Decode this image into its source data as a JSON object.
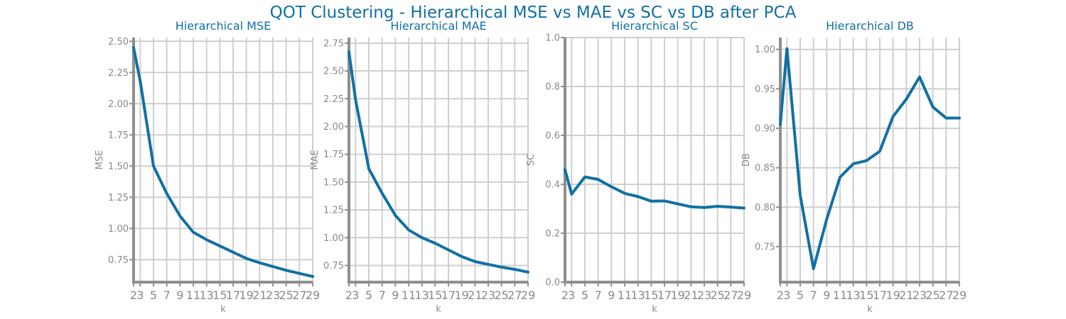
{
  "suptitle": "QOT Clustering - Hierarchical MSE vs MAE vs SC vs DB after PCA",
  "colors": {
    "title": "#1170a3",
    "line": "#1170a3",
    "grid": "#cfcfcf",
    "axis": "#8f8f8f",
    "tick_text": "#8a8a8a"
  },
  "chart_data": [
    {
      "type": "line",
      "title": "Hierarchical MSE",
      "xlabel": "k",
      "ylabel": "MSE",
      "x": [
        2,
        3,
        5,
        7,
        9,
        11,
        13,
        15,
        17,
        19,
        21,
        23,
        25,
        27,
        29
      ],
      "values": [
        2.45,
        2.18,
        1.5,
        1.28,
        1.1,
        0.97,
        0.91,
        0.86,
        0.81,
        0.76,
        0.725,
        0.695,
        0.665,
        0.64,
        0.615
      ],
      "xlim": [
        2,
        29
      ],
      "ylim": [
        0.57,
        2.53
      ],
      "yticks": [
        "0.75",
        "1.00",
        "1.25",
        "1.50",
        "1.75",
        "2.00",
        "2.25",
        "2.50"
      ],
      "xticks": [
        "2",
        "3",
        "5",
        "7",
        "9",
        "11",
        "13",
        "15",
        "17",
        "19",
        "21",
        "23",
        "25",
        "27",
        "29"
      ],
      "grid": true
    },
    {
      "type": "line",
      "title": "Hierarchical MAE",
      "xlabel": "k",
      "ylabel": "MAE",
      "x": [
        2,
        3,
        5,
        7,
        9,
        11,
        13,
        15,
        17,
        19,
        21,
        23,
        25,
        27,
        29
      ],
      "values": [
        2.67,
        2.24,
        1.62,
        1.4,
        1.2,
        1.07,
        1.0,
        0.95,
        0.89,
        0.83,
        0.785,
        0.76,
        0.735,
        0.715,
        0.69
      ],
      "xlim": [
        2,
        29
      ],
      "ylim": [
        0.6,
        2.8
      ],
      "yticks": [
        "0.75",
        "1.00",
        "1.25",
        "1.50",
        "1.75",
        "2.00",
        "2.25",
        "2.50",
        "2.75"
      ],
      "xticks": [
        "2",
        "3",
        "5",
        "7",
        "9",
        "11",
        "13",
        "15",
        "17",
        "19",
        "21",
        "23",
        "25",
        "27",
        "29"
      ],
      "grid": true
    },
    {
      "type": "line",
      "title": "Hierarchical SC",
      "xlabel": "k",
      "ylabel": "SC",
      "x": [
        2,
        3,
        5,
        7,
        9,
        11,
        13,
        15,
        17,
        19,
        21,
        23,
        25,
        27,
        29
      ],
      "values": [
        0.46,
        0.36,
        0.43,
        0.42,
        0.39,
        0.363,
        0.35,
        0.331,
        0.332,
        0.32,
        0.308,
        0.305,
        0.31,
        0.307,
        0.303
      ],
      "xlim": [
        2,
        29
      ],
      "ylim": [
        0.0,
        1.0
      ],
      "yticks": [
        "0.0",
        "0.2",
        "0.4",
        "0.6",
        "0.8",
        "1.0"
      ],
      "xticks": [
        "2",
        "3",
        "5",
        "7",
        "9",
        "11",
        "13",
        "15",
        "17",
        "19",
        "21",
        "23",
        "25",
        "27",
        "29"
      ],
      "grid": true
    },
    {
      "type": "line",
      "title": "Hierarchical DB",
      "xlabel": "k",
      "ylabel": "DB",
      "x": [
        2,
        3,
        5,
        7,
        9,
        11,
        13,
        15,
        17,
        19,
        21,
        23,
        25,
        27,
        29
      ],
      "values": [
        0.905,
        1.001,
        0.815,
        0.722,
        0.785,
        0.838,
        0.855,
        0.859,
        0.871,
        0.915,
        0.937,
        0.965,
        0.927,
        0.913,
        0.913
      ],
      "xlim": [
        2,
        29
      ],
      "ylim": [
        0.705,
        1.015
      ],
      "yticks": [
        "0.75",
        "0.80",
        "0.85",
        "0.90",
        "0.95",
        "1.00"
      ],
      "xticks": [
        "2",
        "3",
        "5",
        "7",
        "9",
        "11",
        "13",
        "15",
        "17",
        "19",
        "21",
        "23",
        "25",
        "27",
        "29"
      ],
      "grid": true
    }
  ]
}
